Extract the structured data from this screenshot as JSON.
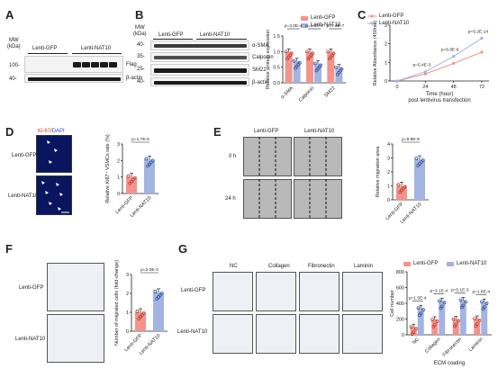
{
  "panels": {
    "A": "A",
    "B": "B",
    "C": "C",
    "D": "D",
    "E": "E",
    "F": "F",
    "G": "G"
  },
  "legend": {
    "gfp": "Lenti-GFP",
    "nat10": "Lenti-NAT10"
  },
  "colors": {
    "gfp": "#f2948c",
    "nat10": "#a4b4e0",
    "gfp_dot": "#c0392b",
    "nat10_dot": "#2e4a9a"
  },
  "panelA": {
    "mw": "MW",
    "kda": "(kDa)",
    "lane_gfp": "Lenti-GFP",
    "lane_nat10": "Lenti-NAT10",
    "mw100": "100-",
    "mw40": "40-",
    "flag": "Flag",
    "actin": "β-actin"
  },
  "panelB": {
    "mw": "MW",
    "kda": "(kDa)",
    "lane_gfp": "Lenti-GFP",
    "lane_nat10": "Lenti-NAT10",
    "mw40": "40-",
    "mw35": "35-",
    "mw25": "25-",
    "mw40b": "40-",
    "sma": "α-SMA",
    "calponin": "Calponin",
    "sm22": "SM22",
    "actin": "β-actin"
  },
  "panelD": {
    "stain_ki": "Ki-67",
    "stain_sep": "/",
    "stain_dapi": "DAPI",
    "row1": "Lenti-GFP",
    "row2": "Lenti-NAT10"
  },
  "panelE": {
    "col1": "Lenti-GFP",
    "col2": "Lenti-NAT10",
    "row1": "0 h",
    "row2": "24 h"
  },
  "panelF": {
    "row1": "Lenti-GFP",
    "row2": "Lenti-NAT10"
  },
  "panelG": {
    "cols": [
      "NC",
      "Collagen",
      "Fibronectin",
      "Laminin"
    ],
    "row1": "Lenti-GFP",
    "row2": "Lenti-NAT10"
  },
  "chart_data": [
    {
      "id": "B",
      "type": "bar",
      "categories": [
        "α-SMA",
        "Calponin",
        "SM22"
      ],
      "series": [
        {
          "name": "Lenti-GFP",
          "values": [
            1.0,
            1.0,
            1.0
          ]
        },
        {
          "name": "Lenti-NAT10",
          "values": [
            0.7,
            0.62,
            0.5
          ]
        }
      ],
      "ylabel": "Relative protein expression",
      "ylim": [
        0,
        1.5
      ],
      "yticks": [
        "0.0",
        "0.5",
        "1.0",
        "1.5"
      ],
      "pvalues": [
        "p=3.0E-4",
        "p=1.0E-4",
        "p=7.3E-7"
      ]
    },
    {
      "id": "C",
      "type": "line",
      "x": [
        0,
        24,
        48,
        72
      ],
      "xticks": [
        "0",
        "24",
        "48",
        "72"
      ],
      "series": [
        {
          "name": "Lenti-GFP",
          "values": [
            0.0,
            0.38,
            0.95,
            1.55
          ]
        },
        {
          "name": "Lenti-NAT10",
          "values": [
            0.0,
            0.5,
            1.32,
            2.3
          ]
        }
      ],
      "ylabel": "Relative Absorbance (450nm)",
      "xlabel": "Time (hour)",
      "xlabel2": "post lentivirus transfection",
      "ylim": [
        0,
        3
      ],
      "yticks": [
        "0",
        "1",
        "2",
        "3"
      ],
      "pvalues": [
        "p=5.4E-3",
        "p=6.8E-6",
        "p=5.2E-14"
      ]
    },
    {
      "id": "D",
      "type": "bar",
      "categories": [
        "Lenti-GFP",
        "Lenti-NAT10"
      ],
      "values": [
        1.0,
        2.05
      ],
      "ylabel": "Relative Ki67⁺ VSMCs rate (%)",
      "ylim": [
        0,
        3
      ],
      "yticks": [
        "0",
        "1",
        "2",
        "3"
      ],
      "pvalue": "p=1.7E-5"
    },
    {
      "id": "E",
      "type": "bar",
      "categories": [
        "Lenti-GFP",
        "Lenti-NAT10"
      ],
      "values": [
        1.0,
        2.9
      ],
      "ylabel": "Relative  migration area",
      "ylim": [
        0,
        4
      ],
      "yticks": [
        "0",
        "1",
        "2",
        "3",
        "4"
      ],
      "pvalue": "p=9.8E-9"
    },
    {
      "id": "F",
      "type": "bar",
      "categories": [
        "Lenti-GFP",
        "Lenti-NAT10"
      ],
      "values": [
        1.0,
        2.05
      ],
      "ylabel": "Number of migrated cells (fold-change)",
      "ylim": [
        0,
        3
      ],
      "yticks": [
        "0",
        "1",
        "2",
        "3"
      ],
      "pvalue": "p=2.0E-4"
    },
    {
      "id": "G",
      "type": "bar",
      "categories": [
        "NC",
        "Collagen",
        "Fibronectin",
        "Laminin"
      ],
      "series": [
        {
          "name": "Lenti-GFP",
          "values": [
            100,
            195,
            200,
            205
          ]
        },
        {
          "name": "Lenti-NAT10",
          "values": [
            340,
            430,
            440,
            420
          ]
        }
      ],
      "ylabel": "Cell number",
      "xlabel": "ECM coating",
      "ylim": [
        0,
        800
      ],
      "yticks": [
        "0",
        "200",
        "400",
        "600",
        "800"
      ],
      "pvalues": [
        "p=1.5E-4",
        "p=3.1E-4",
        "p=5.1E-3",
        "p=1.8E-4"
      ]
    }
  ]
}
